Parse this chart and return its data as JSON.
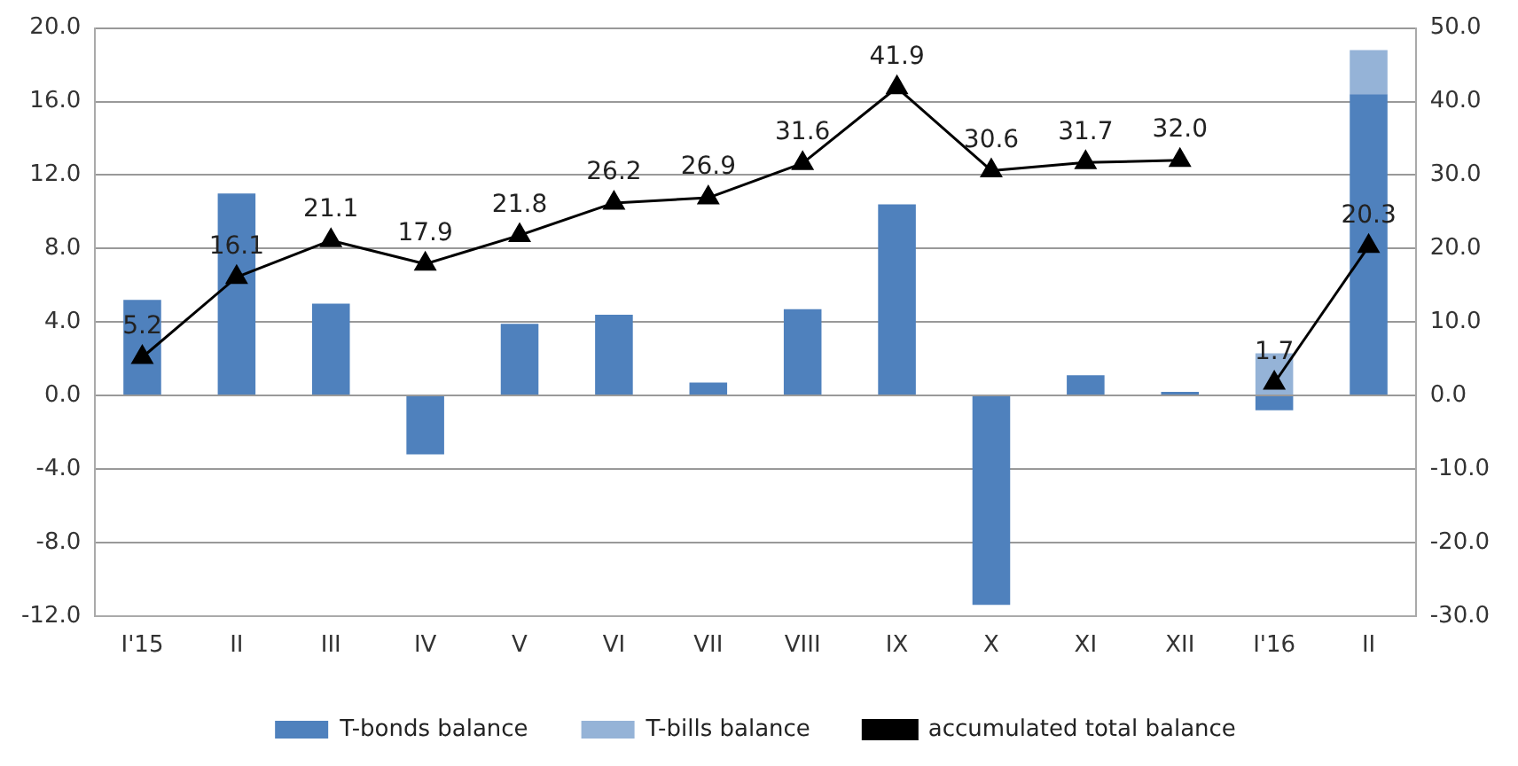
{
  "chart_data": {
    "type": "bar",
    "stacked": true,
    "categories": [
      "I'15",
      "II",
      "III",
      "IV",
      "V",
      "VI",
      "VII",
      "VIII",
      "IX",
      "X",
      "XI",
      "XII",
      "I'16",
      "II"
    ],
    "series": [
      {
        "name": "T-bonds balance",
        "color": "#4f81bd",
        "values": [
          5.2,
          11.0,
          5.0,
          -3.2,
          3.9,
          4.4,
          0.7,
          4.7,
          10.4,
          -11.4,
          1.1,
          0.2,
          -0.8,
          16.4
        ]
      },
      {
        "name": "T-bills balance",
        "color": "#95b3d7",
        "values": [
          null,
          null,
          null,
          null,
          null,
          null,
          null,
          null,
          null,
          null,
          null,
          null,
          2.3,
          2.4
        ]
      },
      {
        "name": "accumulated total balance",
        "type": "line",
        "axis": "y2",
        "color": "#000000",
        "marker": "triangle",
        "values": [
          5.2,
          16.1,
          21.1,
          17.9,
          21.8,
          26.2,
          26.9,
          31.6,
          41.9,
          30.6,
          31.7,
          32.0,
          null,
          null
        ],
        "value_labels": [
          "5.2",
          "16.1",
          "21.1",
          "17.9",
          "21.8",
          "26.2",
          "26.9",
          "31.6",
          "41.9",
          "30.6",
          "31.7",
          "32.0",
          null,
          null
        ]
      },
      {
        "type": "line",
        "axis": "y2",
        "color": "#000000",
        "marker": "triangle",
        "values": [
          null,
          null,
          null,
          null,
          null,
          null,
          null,
          null,
          null,
          null,
          null,
          null,
          1.7,
          20.3
        ],
        "value_labels": [
          null,
          null,
          null,
          null,
          null,
          null,
          null,
          null,
          null,
          null,
          null,
          null,
          "1.7",
          "20.3"
        ]
      }
    ],
    "ylim": [
      -12,
      20
    ],
    "yticks": [
      {
        "value": -12,
        "label": "-12.0"
      },
      {
        "value": -8,
        "label": "-8.0"
      },
      {
        "value": -4,
        "label": "-4.0"
      },
      {
        "value": 0,
        "label": "0.0"
      },
      {
        "value": 4,
        "label": "4.0"
      },
      {
        "value": 8,
        "label": "8.0"
      },
      {
        "value": 12,
        "label": "12.0"
      },
      {
        "value": 16,
        "label": "16.0"
      },
      {
        "value": 20,
        "label": "20.0"
      }
    ],
    "y2lim": [
      -30,
      50
    ],
    "y2ticks": [
      {
        "value": -30,
        "label": "-30.0"
      },
      {
        "value": -20,
        "label": "-20.0"
      },
      {
        "value": -10,
        "label": "-10.0"
      },
      {
        "value": 0,
        "label": "0.0"
      },
      {
        "value": 10,
        "label": "10.0"
      },
      {
        "value": 20,
        "label": "20.0"
      },
      {
        "value": 30,
        "label": "30.0"
      },
      {
        "value": 40,
        "label": "40.0"
      },
      {
        "value": 50,
        "label": "50.0"
      }
    ],
    "grid": "y",
    "legend": "bottom"
  }
}
